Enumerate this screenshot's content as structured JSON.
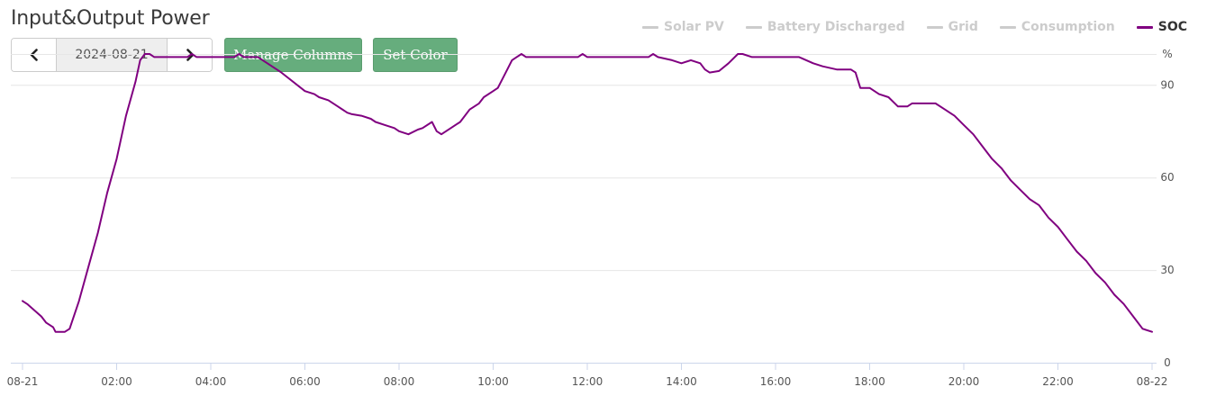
{
  "header": {
    "title": "Input&Output Power",
    "date_value": "2024-08-21",
    "manage_columns_label": "Manage Columns",
    "set_color_label": "Set Color"
  },
  "legend": [
    {
      "label": "Solar PV",
      "active": false
    },
    {
      "label": "Battery Discharged",
      "active": false
    },
    {
      "label": "Grid",
      "active": false
    },
    {
      "label": "Consumption",
      "active": false
    },
    {
      "label": "SOC",
      "active": true
    }
  ],
  "colors": {
    "soc": "#800080",
    "inactive": "#cccccc",
    "button": "#66ad7d",
    "grid": "#e6e6e6"
  },
  "chart_data": {
    "type": "line",
    "title": "Input&Output Power",
    "yunit": "%",
    "ylim": [
      0,
      100
    ],
    "yticks": [
      0,
      30,
      60,
      90
    ],
    "xlim": [
      0,
      24
    ],
    "xticks": [
      {
        "x": 0,
        "label": "08-21"
      },
      {
        "x": 2,
        "label": "02:00"
      },
      {
        "x": 4,
        "label": "04:00"
      },
      {
        "x": 6,
        "label": "06:00"
      },
      {
        "x": 8,
        "label": "08:00"
      },
      {
        "x": 10,
        "label": "10:00"
      },
      {
        "x": 12,
        "label": "12:00"
      },
      {
        "x": 14,
        "label": "14:00"
      },
      {
        "x": 16,
        "label": "16:00"
      },
      {
        "x": 18,
        "label": "18:00"
      },
      {
        "x": 20,
        "label": "20:00"
      },
      {
        "x": 22,
        "label": "22:00"
      },
      {
        "x": 24,
        "label": "08-22"
      }
    ],
    "grid": true,
    "legend_position": "top-right",
    "series": [
      {
        "name": "SOC",
        "points": [
          [
            0.0,
            20
          ],
          [
            0.1,
            19
          ],
          [
            0.25,
            17
          ],
          [
            0.4,
            15
          ],
          [
            0.5,
            13
          ],
          [
            0.65,
            11.5
          ],
          [
            0.7,
            10
          ],
          [
            0.9,
            10
          ],
          [
            1.0,
            11
          ],
          [
            1.2,
            20
          ],
          [
            1.4,
            31
          ],
          [
            1.6,
            42
          ],
          [
            1.8,
            55
          ],
          [
            2.0,
            66
          ],
          [
            2.2,
            80
          ],
          [
            2.4,
            91
          ],
          [
            2.5,
            98
          ],
          [
            2.6,
            100
          ],
          [
            2.7,
            100
          ],
          [
            2.8,
            99
          ],
          [
            3.5,
            99
          ],
          [
            3.6,
            100
          ],
          [
            3.7,
            99
          ],
          [
            4.5,
            99
          ],
          [
            4.6,
            100
          ],
          [
            4.7,
            99
          ],
          [
            5.0,
            99
          ],
          [
            5.5,
            94
          ],
          [
            6.0,
            88
          ],
          [
            6.2,
            87
          ],
          [
            6.3,
            86
          ],
          [
            6.5,
            85
          ],
          [
            6.7,
            83
          ],
          [
            6.9,
            81
          ],
          [
            7.0,
            80.5
          ],
          [
            7.2,
            80
          ],
          [
            7.4,
            79
          ],
          [
            7.5,
            78
          ],
          [
            7.7,
            77
          ],
          [
            7.9,
            76
          ],
          [
            8.0,
            75
          ],
          [
            8.2,
            74
          ],
          [
            8.4,
            75.5
          ],
          [
            8.5,
            76
          ],
          [
            8.7,
            78
          ],
          [
            8.8,
            75
          ],
          [
            8.9,
            74
          ],
          [
            9.1,
            76
          ],
          [
            9.3,
            78
          ],
          [
            9.5,
            82
          ],
          [
            9.7,
            84
          ],
          [
            9.8,
            86
          ],
          [
            10.0,
            88
          ],
          [
            10.1,
            89
          ],
          [
            10.3,
            95
          ],
          [
            10.4,
            98
          ],
          [
            10.5,
            99
          ],
          [
            10.6,
            100
          ],
          [
            10.7,
            99
          ],
          [
            11.8,
            99
          ],
          [
            11.9,
            100
          ],
          [
            12.0,
            99
          ],
          [
            13.3,
            99
          ],
          [
            13.4,
            100
          ],
          [
            13.5,
            99
          ],
          [
            13.8,
            98
          ],
          [
            14.0,
            97
          ],
          [
            14.2,
            98
          ],
          [
            14.4,
            97
          ],
          [
            14.5,
            95
          ],
          [
            14.6,
            94
          ],
          [
            14.8,
            94.5
          ],
          [
            15.0,
            97
          ],
          [
            15.2,
            100
          ],
          [
            15.3,
            100
          ],
          [
            15.5,
            99
          ],
          [
            16.5,
            99
          ],
          [
            16.8,
            97
          ],
          [
            17.0,
            96
          ],
          [
            17.3,
            95
          ],
          [
            17.6,
            95
          ],
          [
            17.7,
            94
          ],
          [
            17.8,
            89
          ],
          [
            18.0,
            89
          ],
          [
            18.2,
            87
          ],
          [
            18.4,
            86
          ],
          [
            18.6,
            83
          ],
          [
            18.8,
            83
          ],
          [
            18.9,
            84
          ],
          [
            19.4,
            84
          ],
          [
            19.6,
            82
          ],
          [
            19.8,
            80
          ],
          [
            20.0,
            77
          ],
          [
            20.2,
            74
          ],
          [
            20.4,
            70
          ],
          [
            20.6,
            66
          ],
          [
            20.8,
            63
          ],
          [
            21.0,
            59
          ],
          [
            21.2,
            56
          ],
          [
            21.4,
            53
          ],
          [
            21.6,
            51
          ],
          [
            21.8,
            47
          ],
          [
            22.0,
            44
          ],
          [
            22.2,
            40
          ],
          [
            22.4,
            36
          ],
          [
            22.6,
            33
          ],
          [
            22.8,
            29
          ],
          [
            23.0,
            26
          ],
          [
            23.2,
            22
          ],
          [
            23.4,
            19
          ],
          [
            23.6,
            15
          ],
          [
            23.8,
            11
          ],
          [
            24.0,
            10
          ]
        ]
      }
    ]
  }
}
